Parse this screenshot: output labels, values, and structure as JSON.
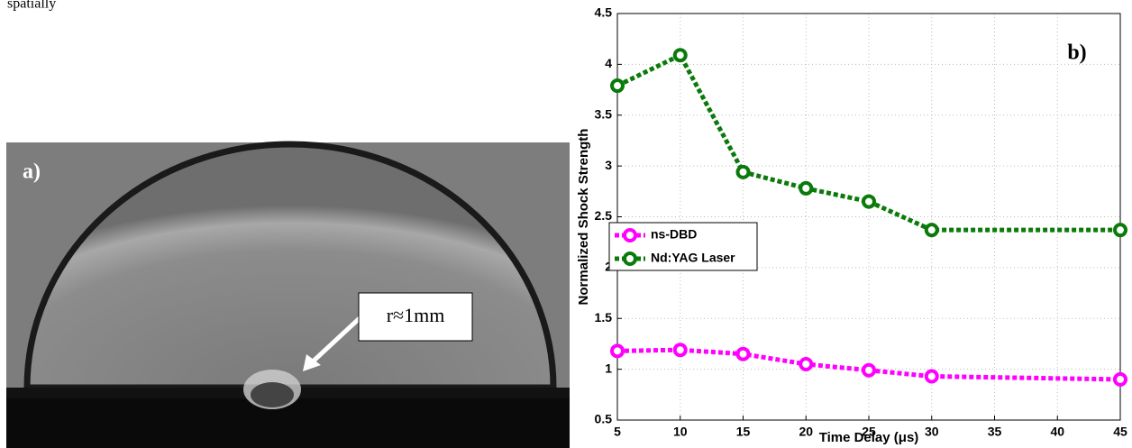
{
  "document": {
    "text_fragment": "spatially",
    "figure_a": {
      "label": "a)",
      "annotation": "r≈1mm"
    }
  },
  "chart_data": {
    "type": "line",
    "annotation": "b)",
    "x_label": "Time Delay (μs)",
    "y_label": "Normalized Shock Strength",
    "x": [
      5,
      10,
      15,
      20,
      25,
      30,
      45
    ],
    "series": [
      {
        "name": "ns-DBD",
        "color": "#ff00ff",
        "values": [
          1.18,
          1.19,
          1.15,
          1.05,
          0.99,
          0.93,
          0.9
        ]
      },
      {
        "name": "Nd:YAG Laser",
        "color": "#0a7a0a",
        "values": [
          3.79,
          4.09,
          2.94,
          2.78,
          2.65,
          2.37,
          2.37
        ]
      }
    ],
    "xlim": [
      5,
      45
    ],
    "xticks": [
      5,
      10,
      15,
      20,
      25,
      30,
      35,
      40,
      45
    ],
    "ylim": [
      0.5,
      4.5
    ],
    "yticks": [
      0.5,
      1,
      1.5,
      2,
      2.5,
      3,
      3.5,
      4,
      4.5
    ],
    "grid": true,
    "legend": "left"
  }
}
